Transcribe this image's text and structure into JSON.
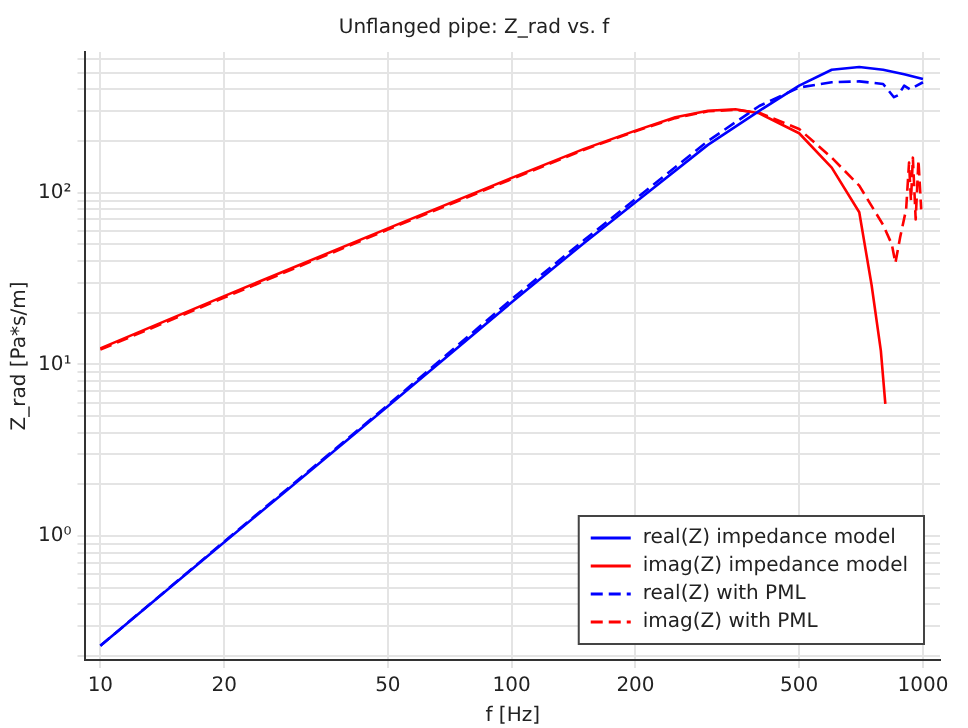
{
  "chart_data": {
    "type": "line",
    "title": "Unflanged pipe: Z_rad vs. f",
    "xlabel": "f [Hz]",
    "ylabel": "Z_rad [Pa*s/m]",
    "log": "xy",
    "grid": true,
    "legend": "bottom right",
    "marker": "none",
    "xlim": [
      9.2,
      1100
    ],
    "xticks": [
      10,
      20,
      50,
      100,
      200,
      500,
      1000
    ],
    "ylim": [
      0.19,
      660
    ],
    "yticks": [
      {
        "value": 0.2,
        "label": null
      },
      {
        "value": 0.3,
        "label": null
      },
      {
        "value": 0.4,
        "label": null
      },
      {
        "value": 0.5,
        "label": null
      },
      {
        "value": 0.6,
        "label": null
      },
      {
        "value": 0.7,
        "label": null
      },
      {
        "value": 0.8,
        "label": null
      },
      {
        "value": 0.9,
        "label": null
      },
      {
        "value": 1,
        "label": "10⁰"
      },
      {
        "value": 2,
        "label": null
      },
      {
        "value": 3,
        "label": null
      },
      {
        "value": 4,
        "label": null
      },
      {
        "value": 5,
        "label": null
      },
      {
        "value": 6,
        "label": null
      },
      {
        "value": 7,
        "label": null
      },
      {
        "value": 8,
        "label": null
      },
      {
        "value": 9,
        "label": null
      },
      {
        "value": 10,
        "label": "10¹"
      },
      {
        "value": 20,
        "label": null
      },
      {
        "value": 30,
        "label": null
      },
      {
        "value": 40,
        "label": null
      },
      {
        "value": 50,
        "label": null
      },
      {
        "value": 60,
        "label": null
      },
      {
        "value": 70,
        "label": null
      },
      {
        "value": 80,
        "label": null
      },
      {
        "value": 90,
        "label": null
      },
      {
        "value": 100,
        "label": "10²"
      },
      {
        "value": 200,
        "label": null
      },
      {
        "value": 300,
        "label": null
      },
      {
        "value": 400,
        "label": null
      },
      {
        "value": 500,
        "label": null
      },
      {
        "value": 600,
        "label": null
      }
    ],
    "series": [
      {
        "name": "real(Z) impedance model",
        "color": "#0000ff",
        "line_style": "solid",
        "x": [
          10,
          20,
          50,
          100,
          150,
          200,
          300,
          400,
          500,
          600,
          700,
          800,
          900,
          1000
        ],
        "values": [
          0.23,
          0.92,
          5.7,
          23,
          51,
          88,
          190,
          300,
          420,
          520,
          540,
          520,
          490,
          460
        ]
      },
      {
        "name": "imag(Z) impedance model",
        "color": "#ff0000",
        "line_style": "solid",
        "x": [
          10,
          20,
          50,
          100,
          150,
          200,
          250,
          300,
          350,
          400,
          500,
          600,
          700,
          750,
          790,
          810
        ],
        "values": [
          12.4,
          25,
          62,
          122,
          180,
          230,
          275,
          300,
          306,
          290,
          222,
          140,
          77,
          29,
          12,
          5.9
        ]
      },
      {
        "name": "real(Z) with PML",
        "color": "#0000ff",
        "line_style": "dashed",
        "x": [
          10,
          20,
          50,
          100,
          150,
          200,
          300,
          400,
          500,
          600,
          700,
          800,
          850,
          870,
          900,
          930,
          1000
        ],
        "values": [
          0.23,
          0.93,
          5.8,
          24,
          53,
          92,
          200,
          320,
          410,
          440,
          445,
          430,
          360,
          370,
          420,
          400,
          440
        ]
      },
      {
        "name": "imag(Z) with PML",
        "color": "#ff0000",
        "line_style": "dashed",
        "x": [
          10,
          20,
          50,
          100,
          150,
          200,
          250,
          300,
          350,
          400,
          500,
          600,
          700,
          800,
          840,
          857,
          880,
          910,
          925,
          935,
          945,
          960,
          975,
          990
        ],
        "values": [
          12.2,
          24.5,
          61,
          120,
          178,
          228,
          272,
          298,
          304,
          292,
          235,
          160,
          110,
          65,
          50,
          39,
          55,
          80,
          150,
          90,
          160,
          70,
          155,
          80
        ]
      }
    ]
  }
}
